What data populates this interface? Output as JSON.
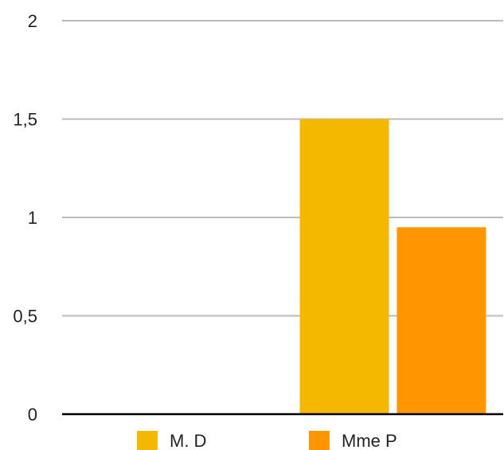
{
  "chart_data": {
    "type": "bar",
    "categories": [
      "",
      ""
    ],
    "series": [
      {
        "name": "M. D",
        "color": "#F5B800",
        "values": [
          0,
          1.5
        ]
      },
      {
        "name": "Mme P",
        "color": "#FF9500",
        "values": [
          0,
          0.95
        ]
      }
    ],
    "ylim": [
      0,
      2
    ],
    "yticks": [
      0,
      0.5,
      1,
      1.5,
      2
    ],
    "ytick_labels": [
      "0",
      "0,5",
      "1",
      "1,5",
      "2"
    ],
    "grid": true,
    "legend_position": "bottom",
    "gridline_color": "#BBBBBB",
    "axis_color": "#000000"
  }
}
